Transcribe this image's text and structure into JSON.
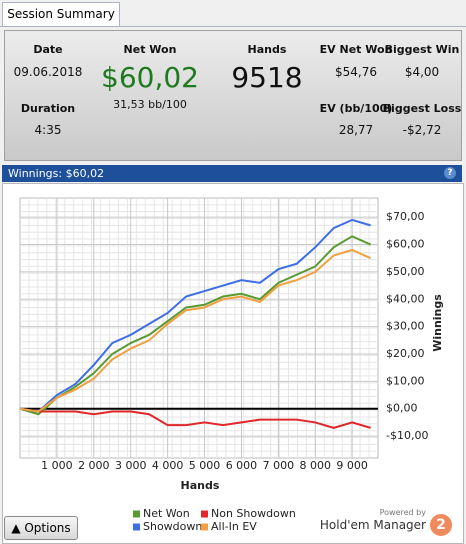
{
  "tab": "Session Summary",
  "summary": {
    "date": {
      "label": "Date",
      "value": "09.06.2018"
    },
    "duration": {
      "label": "Duration",
      "value": "4:35"
    },
    "net_won": {
      "label": "Net Won",
      "value": "$60,02",
      "sub": "31,53 bb/100"
    },
    "hands": {
      "label": "Hands",
      "value": "9518"
    },
    "ev_net_won": {
      "label": "EV Net Won",
      "value": "$54,76"
    },
    "biggest_win": {
      "label": "Biggest Win",
      "value": "$4,00"
    },
    "ev_bb": {
      "label": "EV (bb/100)",
      "value": "28,77"
    },
    "biggest_loss": {
      "label": "Biggest Loss",
      "value": "-$2,72"
    }
  },
  "panel_title": "Winnings: $60,02",
  "help": "?",
  "options": "Options",
  "powered_by": "Powered by",
  "brand": "Hold'em Manager",
  "brand_logo": "2",
  "chart_data": {
    "type": "line",
    "x_label": "Hands",
    "y_label": "Winnings",
    "x": [
      0,
      500,
      1000,
      1500,
      2000,
      2500,
      3000,
      3500,
      4000,
      4500,
      5000,
      5500,
      6000,
      6500,
      7000,
      7500,
      8000,
      8500,
      9000,
      9500
    ],
    "series": [
      {
        "name": "Net Won",
        "color": "#5a9a32",
        "values": [
          0,
          -2,
          4,
          8,
          13,
          20,
          24,
          27,
          32,
          37,
          38,
          41,
          42,
          40,
          46,
          49,
          52,
          59,
          63,
          60
        ]
      },
      {
        "name": "Non Showdown",
        "color": "#e0282b",
        "values": [
          0,
          -1,
          -1,
          -1,
          -2,
          -1,
          -1,
          -2,
          -6,
          -6,
          -5,
          -6,
          -5,
          -4,
          -4,
          -4,
          -5,
          -7,
          -5,
          -7
        ]
      },
      {
        "name": "Showdown",
        "color": "#3d6ee6",
        "values": [
          0,
          -1,
          5,
          9,
          16,
          24,
          27,
          31,
          35,
          41,
          43,
          45,
          47,
          46,
          51,
          53,
          59,
          66,
          69,
          67
        ]
      },
      {
        "name": "All-In EV",
        "color": "#f0a040",
        "values": [
          0,
          -1,
          4,
          7,
          11,
          18,
          22,
          25,
          31,
          36,
          37,
          40,
          41,
          39,
          45,
          47,
          50,
          56,
          58,
          55
        ]
      }
    ],
    "xlim": [
      0,
      9700
    ],
    "ylim": [
      -18,
      77
    ],
    "xticks": [
      {
        "value": 1000,
        "label": "1 000"
      },
      {
        "value": 2000,
        "label": "2 000"
      },
      {
        "value": 3000,
        "label": "3 000"
      },
      {
        "value": 4000,
        "label": "4 000"
      },
      {
        "value": 5000,
        "label": "5 000"
      },
      {
        "value": 6000,
        "label": "6 000"
      },
      {
        "value": 7000,
        "label": "7 000"
      },
      {
        "value": 8000,
        "label": "8 000"
      },
      {
        "value": 9000,
        "label": "9 000"
      }
    ],
    "yticks": [
      {
        "value": -10,
        "label": "-$10,00"
      },
      {
        "value": 0,
        "label": "$0,00"
      },
      {
        "value": 10,
        "label": "$10,00"
      },
      {
        "value": 20,
        "label": "$20,00"
      },
      {
        "value": 30,
        "label": "$30,00"
      },
      {
        "value": 40,
        "label": "$40,00"
      },
      {
        "value": 50,
        "label": "$50,00"
      },
      {
        "value": 60,
        "label": "$60,00"
      },
      {
        "value": 70,
        "label": "$70,00"
      }
    ],
    "grid": true
  }
}
